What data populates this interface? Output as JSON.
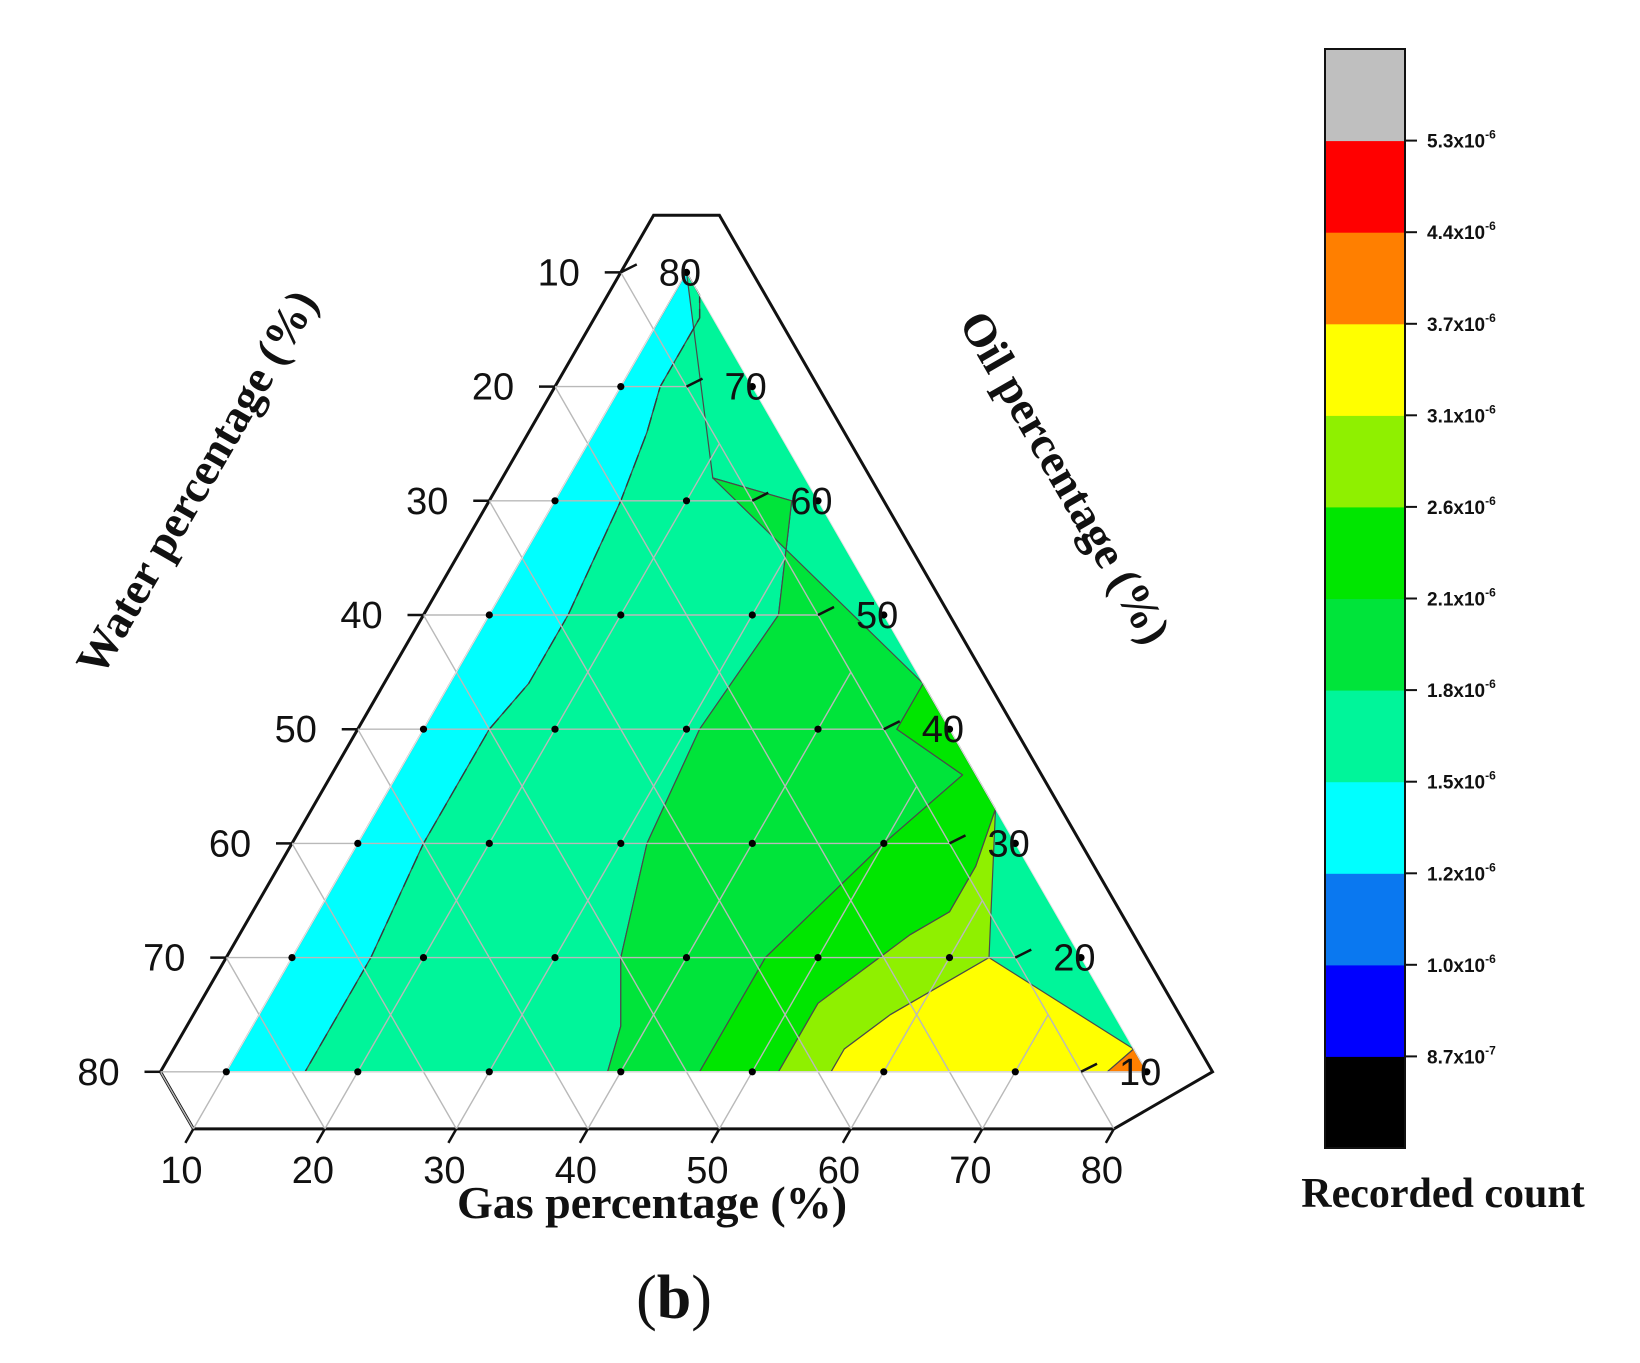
{
  "chart_data": {
    "type": "ternary-contour",
    "panel_label": {
      "open": "(",
      "letter": "b",
      "close": ")"
    },
    "axes": {
      "gas": {
        "title": "Gas percentage (%)",
        "ticks": [
          "10",
          "20",
          "30",
          "40",
          "50",
          "60",
          "70",
          "80"
        ]
      },
      "water": {
        "title": "Water percentage (%)",
        "ticks": [
          "10",
          "20",
          "30",
          "40",
          "50",
          "60",
          "70",
          "80"
        ]
      },
      "oil": {
        "title": "Oil percentage (%)",
        "ticks": [
          "10",
          "20",
          "30",
          "40",
          "50",
          "60",
          "70",
          "80"
        ]
      },
      "range": [
        10,
        80
      ]
    },
    "colorbar": {
      "title": "Recorded count",
      "colors": [
        "#000000",
        "#0000ff",
        "#0a78f0",
        "#00ffff",
        "#00f59a",
        "#00e43a",
        "#00e600",
        "#8ff000",
        "#ffff00",
        "#ff7f00",
        "#ff0000",
        "#bfbfbf"
      ],
      "labels": [
        {
          "m": "8.7x10",
          "e": "-7"
        },
        {
          "m": "1.0x10",
          "e": "-6"
        },
        {
          "m": "1.2x10",
          "e": "-6"
        },
        {
          "m": "1.5x10",
          "e": "-6"
        },
        {
          "m": "1.8x10",
          "e": "-6"
        },
        {
          "m": "2.1x10",
          "e": "-6"
        },
        {
          "m": "2.6x10",
          "e": "-6"
        },
        {
          "m": "3.1x10",
          "e": "-6"
        },
        {
          "m": "3.7x10",
          "e": "-6"
        },
        {
          "m": "4.4x10",
          "e": "-6"
        },
        {
          "m": "5.3x10",
          "e": "-6"
        }
      ]
    },
    "sample_points": [
      {
        "gas": 10,
        "oil": 80,
        "water": 10
      },
      {
        "gas": 10,
        "oil": 70,
        "water": 20
      },
      {
        "gas": 20,
        "oil": 70,
        "water": 10
      },
      {
        "gas": 10,
        "oil": 60,
        "water": 30
      },
      {
        "gas": 20,
        "oil": 60,
        "water": 20
      },
      {
        "gas": 30,
        "oil": 60,
        "water": 10
      },
      {
        "gas": 10,
        "oil": 50,
        "water": 40
      },
      {
        "gas": 20,
        "oil": 50,
        "water": 30
      },
      {
        "gas": 30,
        "oil": 50,
        "water": 20
      },
      {
        "gas": 40,
        "oil": 50,
        "water": 10
      },
      {
        "gas": 10,
        "oil": 40,
        "water": 50
      },
      {
        "gas": 20,
        "oil": 40,
        "water": 40
      },
      {
        "gas": 30,
        "oil": 40,
        "water": 30
      },
      {
        "gas": 40,
        "oil": 40,
        "water": 20
      },
      {
        "gas": 50,
        "oil": 40,
        "water": 10
      },
      {
        "gas": 10,
        "oil": 30,
        "water": 60
      },
      {
        "gas": 20,
        "oil": 30,
        "water": 50
      },
      {
        "gas": 30,
        "oil": 30,
        "water": 40
      },
      {
        "gas": 40,
        "oil": 30,
        "water": 30
      },
      {
        "gas": 50,
        "oil": 30,
        "water": 20
      },
      {
        "gas": 60,
        "oil": 30,
        "water": 10
      },
      {
        "gas": 10,
        "oil": 20,
        "water": 70
      },
      {
        "gas": 20,
        "oil": 20,
        "water": 60
      },
      {
        "gas": 30,
        "oil": 20,
        "water": 50
      },
      {
        "gas": 40,
        "oil": 20,
        "water": 40
      },
      {
        "gas": 50,
        "oil": 20,
        "water": 30
      },
      {
        "gas": 60,
        "oil": 20,
        "water": 20
      },
      {
        "gas": 70,
        "oil": 20,
        "water": 10
      },
      {
        "gas": 10,
        "oil": 10,
        "water": 80
      },
      {
        "gas": 20,
        "oil": 10,
        "water": 70
      },
      {
        "gas": 30,
        "oil": 10,
        "water": 60
      },
      {
        "gas": 40,
        "oil": 10,
        "water": 50
      },
      {
        "gas": 50,
        "oil": 10,
        "water": 40
      },
      {
        "gas": 60,
        "oil": 10,
        "water": 30
      },
      {
        "gas": 70,
        "oil": 10,
        "water": 20
      },
      {
        "gas": 80,
        "oil": 10,
        "water": 10
      }
    ],
    "contour_regions": [
      {
        "level": "1.2x10^-6 to 1.5x10^-6",
        "color": "#00ffff",
        "boundary": [
          [
            10,
            80
          ],
          [
            12,
            78
          ],
          [
            13,
            76
          ],
          [
            13,
            70
          ],
          [
            14,
            66
          ],
          [
            15,
            60
          ],
          [
            16,
            50
          ],
          [
            16,
            44
          ],
          [
            15,
            40
          ],
          [
            15,
            30
          ],
          [
            16,
            20
          ],
          [
            16,
            10
          ],
          [
            10,
            10
          ]
        ]
      },
      {
        "level": "1.5x10^-6 to 1.8x10^-6",
        "color": "#00f59a",
        "boundary": [
          [
            10,
            80
          ],
          [
            12,
            78
          ],
          [
            13,
            76
          ],
          [
            13,
            70
          ],
          [
            14,
            66
          ],
          [
            15,
            60
          ],
          [
            16,
            50
          ],
          [
            16,
            44
          ],
          [
            15,
            40
          ],
          [
            15,
            30
          ],
          [
            16,
            20
          ],
          [
            16,
            10
          ],
          [
            39,
            10
          ],
          [
            38,
            14
          ],
          [
            35,
            20
          ],
          [
            32,
            30
          ],
          [
            31,
            40
          ],
          [
            32,
            50
          ],
          [
            28,
            60
          ],
          [
            21,
            62
          ],
          [
            10,
            80
          ]
        ]
      },
      {
        "level": "1.8x10^-6 to 2.1x10^-6",
        "color": "#00e43a",
        "boundary": [
          [
            21,
            62
          ],
          [
            28,
            60
          ],
          [
            32,
            50
          ],
          [
            31,
            40
          ],
          [
            32,
            30
          ],
          [
            35,
            20
          ],
          [
            38,
            14
          ],
          [
            39,
            10
          ],
          [
            46,
            10
          ],
          [
            46,
            20
          ],
          [
            50,
            30
          ],
          [
            53,
            36
          ],
          [
            46,
            40
          ],
          [
            46,
            44
          ],
          [
            21,
            62
          ]
        ]
      },
      {
        "level": "2.1x10^-6 to 2.6x10^-6",
        "color": "#00e600",
        "boundary": [
          [
            46,
            44
          ],
          [
            46,
            40
          ],
          [
            53,
            36
          ],
          [
            50,
            30
          ],
          [
            46,
            20
          ],
          [
            46,
            10
          ],
          [
            52,
            10
          ],
          [
            52,
            16
          ],
          [
            56,
            22
          ],
          [
            58,
            24
          ],
          [
            58,
            28
          ],
          [
            57,
            33
          ],
          [
            46,
            44
          ]
        ]
      },
      {
        "level": "2.6x10^-6 to 3.1x10^-6",
        "color": "#8ff000",
        "boundary": [
          [
            57,
            33
          ],
          [
            58,
            28
          ],
          [
            58,
            24
          ],
          [
            56,
            22
          ],
          [
            52,
            16
          ],
          [
            52,
            10
          ],
          [
            56,
            10
          ],
          [
            56,
            12
          ],
          [
            58,
            15
          ],
          [
            63,
            20
          ],
          [
            57,
            33
          ]
        ]
      },
      {
        "level": "3.1x10^-6 to 3.7x10^-6",
        "color": "#ffff00",
        "boundary": [
          [
            56,
            10
          ],
          [
            56,
            12
          ],
          [
            58,
            15
          ],
          [
            63,
            20
          ],
          [
            78,
            12
          ],
          [
            77,
            10
          ]
        ]
      },
      {
        "level": "3.7x10^-6 to 4.4x10^-6",
        "color": "#ff7f00",
        "boundary": [
          [
            77,
            10
          ],
          [
            78,
            12
          ],
          [
            80,
            10
          ]
        ]
      }
    ]
  }
}
